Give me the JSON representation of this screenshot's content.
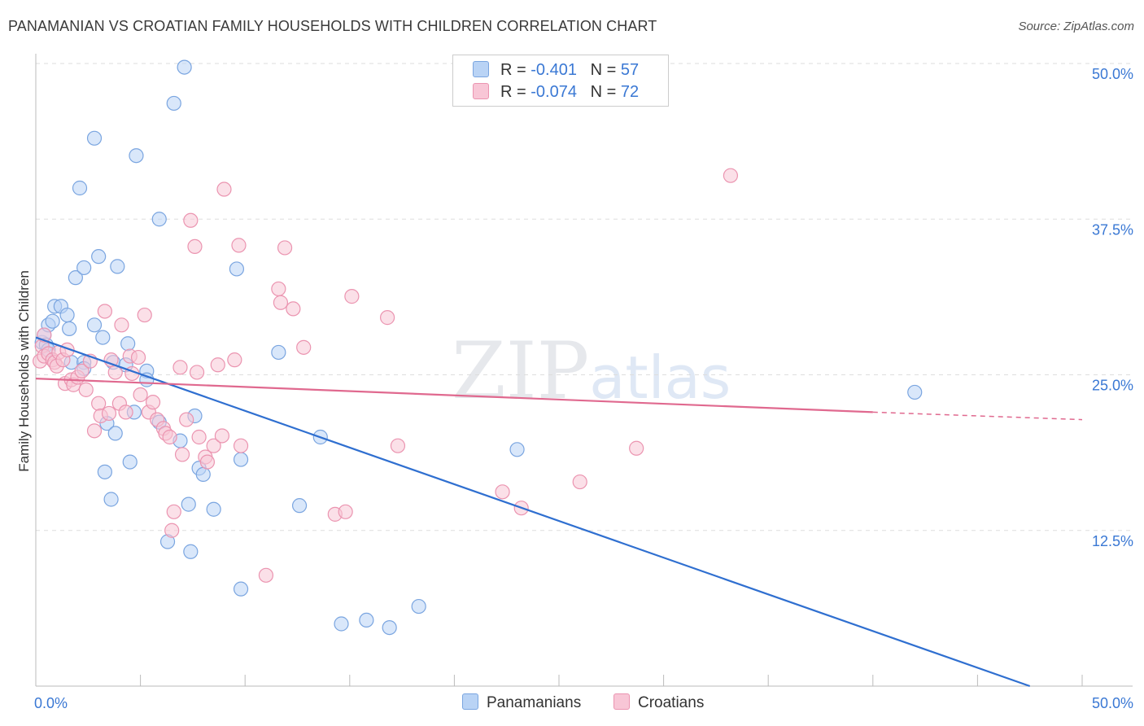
{
  "header": {
    "title": "PANAMANIAN VS CROATIAN FAMILY HOUSEHOLDS WITH CHILDREN CORRELATION CHART",
    "source": "Source: ZipAtlas.com"
  },
  "watermark": {
    "zip": "ZIP",
    "atlas": "atlas"
  },
  "legend": {
    "r_label": "R =",
    "n_label": "N =",
    "panamanians": {
      "r": "-0.401",
      "n": "57"
    },
    "croatians": {
      "r": "-0.074",
      "n": "72"
    }
  },
  "colors": {
    "blue_fill": "#b9d3f5",
    "blue_stroke": "#7aa5e0",
    "blue_line": "#2f6fd0",
    "pink_fill": "#f8c6d6",
    "pink_stroke": "#eb94b0",
    "pink_line": "#e0698f",
    "axis_text": "#3a78d4"
  },
  "chart_data": {
    "type": "scatter",
    "title": "PANAMANIAN VS CROATIAN FAMILY HOUSEHOLDS WITH CHILDREN CORRELATION CHART",
    "xlabel": "",
    "ylabel": "Family Households with Children",
    "xlim": [
      0,
      50
    ],
    "ylim": [
      0,
      50
    ],
    "x_tick_labels": [
      "0.0%",
      "50.0%"
    ],
    "y_tick_labels": [
      "12.5%",
      "25.0%",
      "37.5%",
      "50.0%"
    ],
    "y_ticks": [
      12.5,
      25.0,
      37.5,
      50.0
    ],
    "grid": true,
    "series": [
      {
        "name": "Panamanians",
        "r": -0.401,
        "n": 57,
        "trend": [
          [
            0,
            28.0
          ],
          [
            47.5,
            0
          ]
        ],
        "points": [
          [
            0.3,
            27.6
          ],
          [
            0.4,
            28.2
          ],
          [
            0.5,
            27.4
          ],
          [
            0.6,
            29.0
          ],
          [
            0.8,
            29.3
          ],
          [
            0.9,
            30.5
          ],
          [
            1.2,
            30.5
          ],
          [
            1.5,
            29.8
          ],
          [
            1.6,
            28.7
          ],
          [
            1.7,
            26.0
          ],
          [
            1.9,
            32.8
          ],
          [
            2.1,
            40.0
          ],
          [
            2.3,
            33.6
          ],
          [
            2.3,
            26.0
          ],
          [
            2.3,
            25.5
          ],
          [
            2.8,
            29.0
          ],
          [
            2.8,
            44.0
          ],
          [
            3.0,
            34.5
          ],
          [
            3.2,
            28.0
          ],
          [
            3.3,
            17.2
          ],
          [
            3.4,
            21.1
          ],
          [
            3.6,
            15.0
          ],
          [
            3.7,
            26.0
          ],
          [
            3.8,
            20.3
          ],
          [
            3.9,
            33.7
          ],
          [
            4.3,
            25.8
          ],
          [
            4.4,
            27.5
          ],
          [
            4.5,
            18.0
          ],
          [
            4.7,
            22.0
          ],
          [
            4.8,
            42.6
          ],
          [
            5.3,
            25.3
          ],
          [
            5.3,
            24.6
          ],
          [
            5.9,
            37.5
          ],
          [
            5.9,
            21.2
          ],
          [
            6.3,
            11.6
          ],
          [
            6.6,
            46.8
          ],
          [
            6.9,
            19.7
          ],
          [
            7.1,
            49.7
          ],
          [
            7.3,
            14.6
          ],
          [
            7.4,
            10.8
          ],
          [
            7.6,
            21.7
          ],
          [
            7.8,
            17.5
          ],
          [
            8.0,
            17.0
          ],
          [
            8.5,
            14.2
          ],
          [
            9.6,
            33.5
          ],
          [
            9.8,
            7.8
          ],
          [
            9.8,
            18.2
          ],
          [
            11.6,
            26.8
          ],
          [
            12.6,
            14.5
          ],
          [
            13.6,
            20.0
          ],
          [
            14.6,
            5.0
          ],
          [
            15.8,
            5.3
          ],
          [
            16.9,
            4.7
          ],
          [
            18.3,
            6.4
          ],
          [
            23.0,
            19.0
          ],
          [
            42.0,
            23.6
          ],
          [
            0.6,
            27.0
          ]
        ]
      },
      {
        "name": "Croatians",
        "r": -0.074,
        "n": 72,
        "trend": [
          [
            0,
            24.7
          ],
          [
            40,
            22.0
          ]
        ],
        "trend_dashed": [
          [
            40,
            22.0
          ],
          [
            50,
            21.4
          ]
        ],
        "points": [
          [
            0.2,
            26.1
          ],
          [
            0.3,
            27.3
          ],
          [
            0.4,
            26.5
          ],
          [
            0.4,
            28.2
          ],
          [
            0.6,
            26.7
          ],
          [
            0.8,
            26.2
          ],
          [
            0.9,
            26.0
          ],
          [
            1.0,
            25.7
          ],
          [
            1.1,
            26.8
          ],
          [
            1.3,
            26.2
          ],
          [
            1.4,
            24.3
          ],
          [
            1.5,
            27.0
          ],
          [
            1.7,
            24.6
          ],
          [
            1.8,
            24.2
          ],
          [
            2.0,
            24.8
          ],
          [
            2.2,
            25.3
          ],
          [
            2.4,
            23.8
          ],
          [
            2.6,
            26.1
          ],
          [
            2.8,
            20.5
          ],
          [
            3.0,
            22.7
          ],
          [
            3.1,
            21.7
          ],
          [
            3.3,
            30.1
          ],
          [
            3.5,
            21.9
          ],
          [
            3.6,
            26.2
          ],
          [
            3.8,
            25.2
          ],
          [
            4.0,
            22.7
          ],
          [
            4.1,
            29.0
          ],
          [
            4.3,
            22.0
          ],
          [
            4.5,
            26.5
          ],
          [
            4.6,
            25.1
          ],
          [
            4.9,
            26.4
          ],
          [
            5.0,
            23.4
          ],
          [
            5.2,
            29.8
          ],
          [
            5.4,
            22.0
          ],
          [
            5.6,
            22.8
          ],
          [
            5.8,
            21.4
          ],
          [
            6.1,
            20.7
          ],
          [
            6.2,
            20.3
          ],
          [
            6.4,
            20.0
          ],
          [
            6.5,
            12.5
          ],
          [
            6.6,
            14.0
          ],
          [
            6.9,
            25.6
          ],
          [
            7.0,
            18.6
          ],
          [
            7.2,
            21.4
          ],
          [
            7.4,
            37.4
          ],
          [
            7.6,
            35.3
          ],
          [
            7.7,
            25.2
          ],
          [
            7.8,
            20.0
          ],
          [
            8.1,
            18.4
          ],
          [
            8.2,
            18.0
          ],
          [
            8.5,
            19.3
          ],
          [
            8.7,
            25.8
          ],
          [
            8.9,
            20.1
          ],
          [
            9.0,
            39.9
          ],
          [
            9.5,
            26.2
          ],
          [
            9.7,
            35.4
          ],
          [
            9.8,
            19.3
          ],
          [
            11.0,
            8.9
          ],
          [
            11.6,
            31.9
          ],
          [
            11.7,
            30.8
          ],
          [
            11.9,
            35.2
          ],
          [
            12.3,
            30.3
          ],
          [
            12.8,
            27.2
          ],
          [
            14.3,
            13.8
          ],
          [
            14.8,
            14.0
          ],
          [
            15.1,
            31.3
          ],
          [
            16.8,
            29.6
          ],
          [
            17.3,
            19.3
          ],
          [
            22.3,
            15.6
          ],
          [
            23.2,
            14.3
          ],
          [
            26.0,
            16.4
          ],
          [
            28.7,
            19.1
          ],
          [
            33.2,
            41.0
          ]
        ]
      }
    ]
  }
}
